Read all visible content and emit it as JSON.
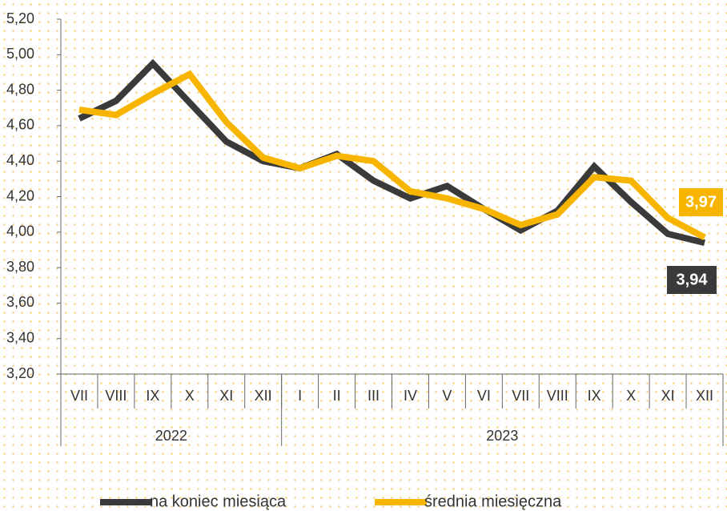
{
  "chart_data": {
    "type": "line",
    "groups": [
      {
        "label": "2022",
        "categories": [
          "VII",
          "VIII",
          "IX",
          "X",
          "XI",
          "XII"
        ]
      },
      {
        "label": "2023",
        "categories": [
          "I",
          "II",
          "III",
          "IV",
          "V",
          "VI",
          "VII",
          "VIII",
          "IX",
          "X",
          "XI",
          "XII"
        ]
      }
    ],
    "series": [
      {
        "name": "na koniec miesiąca",
        "color": "#3a3a3a",
        "values": [
          4.64,
          4.74,
          4.95,
          4.73,
          4.51,
          4.4,
          4.36,
          4.44,
          4.29,
          4.19,
          4.26,
          4.13,
          4.01,
          4.12,
          4.37,
          4.17,
          3.99,
          3.94
        ],
        "value_labels": [
          null,
          null,
          null,
          null,
          null,
          null,
          null,
          null,
          null,
          null,
          null,
          null,
          null,
          null,
          null,
          null,
          null,
          "3,94"
        ]
      },
      {
        "name": "średnia miesięczna",
        "color": "#f7b500",
        "values": [
          4.69,
          4.66,
          4.78,
          4.89,
          4.62,
          4.42,
          4.36,
          4.43,
          4.4,
          4.23,
          4.19,
          4.13,
          4.04,
          4.1,
          4.31,
          4.29,
          4.08,
          3.97
        ],
        "value_labels": [
          null,
          null,
          null,
          null,
          null,
          null,
          null,
          null,
          null,
          null,
          null,
          null,
          null,
          null,
          null,
          null,
          null,
          "3,97"
        ]
      }
    ],
    "ylim": [
      3.2,
      5.2
    ],
    "yticks": [
      {
        "value": 3.2,
        "label": "3,20"
      },
      {
        "value": 3.4,
        "label": "3,40"
      },
      {
        "value": 3.6,
        "label": "3,60"
      },
      {
        "value": 3.8,
        "label": "3,80"
      },
      {
        "value": 4.0,
        "label": "4,00"
      },
      {
        "value": 4.2,
        "label": "4,20"
      },
      {
        "value": 4.4,
        "label": "4,40"
      },
      {
        "value": 4.6,
        "label": "4,60"
      },
      {
        "value": 4.8,
        "label": "4,80"
      },
      {
        "value": 5.0,
        "label": "5,00"
      },
      {
        "value": 5.2,
        "label": "5,20"
      }
    ],
    "legend": "bottom"
  }
}
